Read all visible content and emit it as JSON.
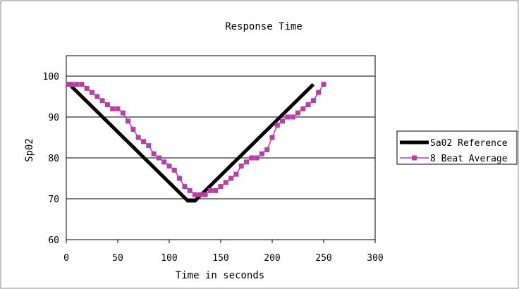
{
  "chart_data": {
    "type": "line",
    "title": "Response Time",
    "xlabel": "Time in seconds",
    "ylabel": "Sp02",
    "xlim": [
      0,
      300
    ],
    "ylim": [
      60,
      105
    ],
    "x_ticks": [
      0,
      50,
      100,
      150,
      200,
      250,
      300
    ],
    "y_ticks": [
      60,
      70,
      80,
      90,
      100
    ],
    "grid": "horizontal",
    "legend_position": "right",
    "series": [
      {
        "name": "Sa02 Reference",
        "color": "#000000",
        "marker": "none",
        "x": [
          5,
          118,
          125,
          240
        ],
        "y": [
          97.5,
          69.5,
          69.5,
          98
        ]
      },
      {
        "name": "8 Beat Average",
        "color": "#b83da8",
        "marker": "square",
        "x": [
          3,
          5,
          10,
          15,
          20,
          25,
          30,
          35,
          40,
          45,
          50,
          55,
          60,
          65,
          70,
          75,
          80,
          85,
          90,
          95,
          100,
          105,
          110,
          115,
          120,
          125,
          130,
          135,
          140,
          145,
          150,
          155,
          160,
          165,
          170,
          175,
          180,
          185,
          190,
          195,
          200,
          205,
          210,
          215,
          220,
          225,
          230,
          235,
          240,
          245,
          250
        ],
        "y": [
          98,
          98,
          98,
          98,
          97,
          96,
          95,
          94,
          93,
          92,
          92,
          91,
          89,
          87,
          85,
          84,
          83,
          81,
          80,
          79,
          78,
          77,
          75,
          73,
          72,
          71,
          71,
          71,
          72,
          72,
          73,
          74,
          75,
          76,
          78,
          79,
          80,
          80,
          81,
          82,
          85,
          88,
          89,
          90,
          90,
          91,
          92,
          93,
          94,
          96,
          98
        ]
      }
    ]
  }
}
